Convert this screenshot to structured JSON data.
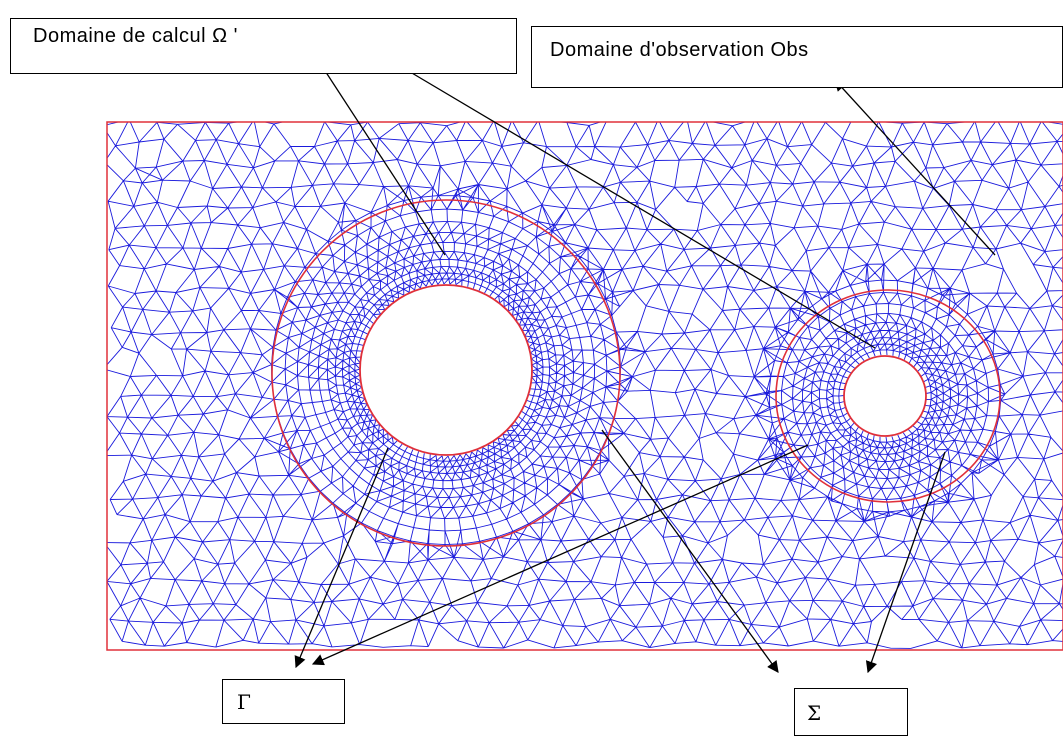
{
  "labels": {
    "computation_domain": "Domaine de calcul Ω '",
    "observation_domain": "Domaine d'observation Obs",
    "gamma": "Γ",
    "sigma": "Σ"
  },
  "colors": {
    "mesh": "#1a1adc",
    "boundary": "#e0303a",
    "arrow": "#000000",
    "background": "#ffffff"
  }
}
